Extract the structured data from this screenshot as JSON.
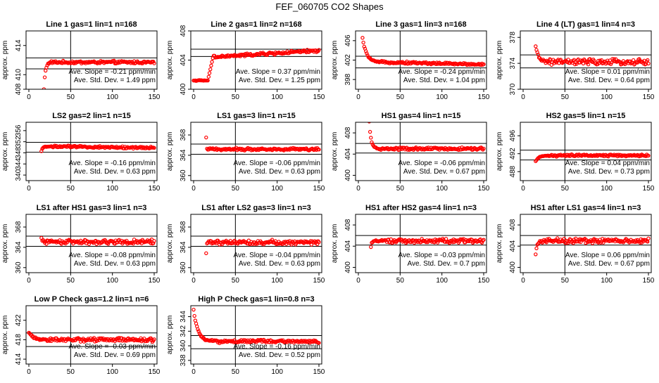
{
  "figure": {
    "title": "FEF_060705  CO2 Shapes"
  },
  "colors": {
    "points": "#ff0000",
    "axes": "#000000",
    "background": "#ffffff"
  },
  "chart_data": [
    {
      "type": "scatter",
      "title": "Line 1 gas=1 lin=1 n=168",
      "ylabel": "approx. ppm",
      "xlim": [
        0,
        150
      ],
      "ylim": [
        408,
        416
      ],
      "xticks": [
        0,
        50,
        100,
        150
      ],
      "yticks": [
        408,
        410,
        414
      ],
      "hlines": [
        410.8,
        412.3
      ],
      "vline": 50,
      "level": 411.7,
      "noise": 0.15,
      "start": {
        "x0": 18,
        "x1": 25,
        "v0": 408,
        "shape": "rise"
      },
      "slope_text": "Ave. Slope = -0.21  ppm/min",
      "std_text": "Ave. Std. Dev. =  1.49  ppm"
    },
    {
      "type": "scatter",
      "title": "Line 2 gas=1 lin=2 n=168",
      "ylabel": "approx. ppm",
      "xlim": [
        0,
        150
      ],
      "ylim": [
        400,
        408
      ],
      "xticks": [
        0,
        50,
        100,
        150
      ],
      "yticks": [
        400,
        404,
        408
      ],
      "hlines": [
        404.5,
        405.5
      ],
      "vline": 50,
      "level": 404.6,
      "noise": 0.15,
      "trend": 0.007,
      "start": {
        "x0": 0,
        "x1": 25,
        "v0": 401.2,
        "shape": "flatrise",
        "xs": 17
      },
      "slope_text": "Ave. Slope =  0.37  ppm/min",
      "std_text": "Ave. Std. Dev. =  1.25  ppm"
    },
    {
      "type": "scatter",
      "title": "Line 3 gas=1 lin=3 n=168",
      "ylabel": "approx. ppm",
      "xlim": [
        0,
        150
      ],
      "ylim": [
        396,
        408
      ],
      "xticks": [
        0,
        50,
        100,
        150
      ],
      "yticks": [
        398,
        402,
        406
      ],
      "hlines": [
        400.4,
        402.8
      ],
      "vline": 50,
      "level": 401.5,
      "noise": 0.18,
      "trend": -0.004,
      "start": {
        "x0": 5,
        "x1": 25,
        "v0": 406.5,
        "shape": "fall"
      },
      "slope_text": "Ave. Slope = -0.24  ppm/min",
      "std_text": "Ave. Std. Dev. =  1.04  ppm"
    },
    {
      "type": "scatter",
      "title": "Line 4 (LT) gas=1 lin=4 n=3",
      "ylabel": "approx. ppm",
      "xlim": [
        0,
        150
      ],
      "ylim": [
        370,
        379
      ],
      "xticks": [
        0,
        50,
        100,
        150
      ],
      "yticks": [
        370,
        374,
        378
      ],
      "hlines": [
        373.3,
        375.3
      ],
      "vline": 50,
      "level": 374.2,
      "noise": 0.35,
      "start": {
        "x0": 15,
        "x1": 30,
        "v0": 376.5,
        "shape": "fall"
      },
      "slope_text": "Ave. Slope =  0.01  ppm/min",
      "std_text": "Ave. Std. Dev. =  0.64  ppm"
    },
    {
      "type": "scatter",
      "title": "LS2 gas=2 lin=1 n=15",
      "ylabel": "approx. ppm",
      "xlim": [
        0,
        150
      ],
      "ylim": [
        338,
        359
      ],
      "xticks": [
        0,
        50,
        100,
        150
      ],
      "yticks": [
        340,
        344,
        348,
        352,
        356
      ],
      "hlines": [
        348.2,
        351.8
      ],
      "vline": 50,
      "level": 350.2,
      "noise": 0.3,
      "trend": -0.004,
      "start": {
        "x0": 15,
        "x1": 20,
        "v0": 348.5,
        "shape": "rise"
      },
      "slope_text": "Ave. Slope = -0.16  ppm/min",
      "std_text": "Ave. Std. Dev. =  0.63  ppm"
    },
    {
      "type": "scatter",
      "title": "LS1 gas=3 lin=1 n=15",
      "ylabel": "approx. ppm",
      "xlim": [
        0,
        150
      ],
      "ylim": [
        359,
        370.5
      ],
      "xticks": [
        0,
        50,
        100,
        150
      ],
      "yticks": [
        360,
        364,
        368
      ],
      "hlines": [
        364.2,
        366.2
      ],
      "vline": 50,
      "level": 365.2,
      "noise": 0.2,
      "start": {
        "x0": 15,
        "x1": 16,
        "v0": 367.5,
        "shape": "spike"
      },
      "slope_text": "Ave. Slope = -0.06  ppm/min",
      "std_text": "Ave. Std. Dev. =  0.63  ppm"
    },
    {
      "type": "scatter",
      "title": "HS1 gas=4 lin=1 n=15",
      "ylabel": "approx. ppm",
      "xlim": [
        0,
        150
      ],
      "ylim": [
        399,
        410
      ],
      "xticks": [
        0,
        50,
        100,
        150
      ],
      "yticks": [
        400,
        404,
        408
      ],
      "hlines": [
        404.2,
        406
      ],
      "vline": 50,
      "level": 405,
      "noise": 0.2,
      "start": {
        "x0": 13,
        "x1": 22,
        "v0": 410,
        "shape": "fall"
      },
      "slope_text": "Ave. Slope = -0.06  ppm/min",
      "std_text": "Ave. Std. Dev. =  0.67  ppm"
    },
    {
      "type": "scatter",
      "title": "HS2 gas=5 lin=1 n=15",
      "ylabel": "approx. ppm",
      "xlim": [
        0,
        150
      ],
      "ylim": [
        486,
        499
      ],
      "xticks": [
        0,
        50,
        100,
        150
      ],
      "yticks": [
        488,
        492,
        496
      ],
      "hlines": [
        490.6,
        492.8
      ],
      "vline": 50,
      "level": 491.6,
      "noise": 0.2,
      "start": {
        "x0": 15,
        "x1": 30,
        "v0": 490.2,
        "shape": "rise"
      },
      "slope_text": "Ave. Slope =  0.04  ppm/min",
      "std_text": "Ave. Std. Dev. =  0.73  ppm"
    },
    {
      "type": "scatter",
      "title": "LS1 after HS1 gas=3 lin=1 n=3",
      "ylabel": "approx. ppm",
      "xlim": [
        0,
        150
      ],
      "ylim": [
        359,
        370.5
      ],
      "xticks": [
        0,
        50,
        100,
        150
      ],
      "yticks": [
        360,
        364,
        368
      ],
      "hlines": [
        364.2,
        366.2
      ],
      "vline": 50,
      "level": 365.1,
      "noise": 0.35,
      "start": {
        "x0": 15,
        "x1": 20,
        "v0": 366,
        "shape": "fall"
      },
      "slope_text": "Ave. Slope = -0.08  ppm/min",
      "std_text": "Ave. Std. Dev. =  0.63  ppm"
    },
    {
      "type": "scatter",
      "title": "LS1 after LS2 gas=3 lin=1 n=3",
      "ylabel": "approx. ppm",
      "xlim": [
        0,
        150
      ],
      "ylim": [
        359,
        370.5
      ],
      "xticks": [
        0,
        50,
        100,
        150
      ],
      "yticks": [
        360,
        364,
        368
      ],
      "hlines": [
        364.2,
        366.2
      ],
      "vline": 50,
      "level": 365,
      "noise": 0.35,
      "start": {
        "x0": 15,
        "x1": 17,
        "v0": 363,
        "shape": "rise"
      },
      "slope_text": "Ave. Slope = -0.04  ppm/min",
      "std_text": "Ave. Std. Dev. =  0.63  ppm"
    },
    {
      "type": "scatter",
      "title": "HS1 after HS2 gas=4 lin=1 n=3",
      "ylabel": "approx. ppm",
      "xlim": [
        0,
        150
      ],
      "ylim": [
        399,
        410
      ],
      "xticks": [
        0,
        50,
        100,
        150
      ],
      "yticks": [
        400,
        404,
        408
      ],
      "hlines": [
        404.2,
        406
      ],
      "vline": 50,
      "level": 405,
      "noise": 0.3,
      "start": {
        "x0": 15,
        "x1": 20,
        "v0": 404,
        "shape": "rise"
      },
      "slope_text": "Ave. Slope = -0.03  ppm/min",
      "std_text": "Ave. Std. Dev. =  0.7  ppm"
    },
    {
      "type": "scatter",
      "title": "HS1 after LS1 gas=4 lin=1 n=3",
      "ylabel": "approx. ppm",
      "xlim": [
        0,
        150
      ],
      "ylim": [
        399,
        410
      ],
      "xticks": [
        0,
        50,
        100,
        150
      ],
      "yticks": [
        400,
        404,
        408
      ],
      "hlines": [
        404.2,
        406
      ],
      "vline": 50,
      "level": 405,
      "noise": 0.35,
      "start": {
        "x0": 15,
        "x1": 22,
        "v0": 402.5,
        "shape": "rise"
      },
      "slope_text": "Ave. Slope =  0.06  ppm/min",
      "std_text": "Ave. Std. Dev. =  0.67  ppm"
    },
    {
      "type": "scatter",
      "title": "Low P Check gas=1.2 lin=1 n=6",
      "ylabel": "approx. ppm",
      "xlim": [
        0,
        150
      ],
      "ylim": [
        413,
        425
      ],
      "xticks": [
        0,
        50,
        100,
        150
      ],
      "yticks": [
        414,
        418,
        422
      ],
      "hlines": [
        416.6,
        419.4
      ],
      "vline": 50,
      "level": 418,
      "noise": 0.3,
      "start": {
        "x0": 0,
        "x1": 20,
        "v0": 419.5,
        "shape": "fall"
      },
      "slope_text": "Ave. Slope = -0.03  ppm/min",
      "std_text": "Ave. Std. Dev. =  0.69  ppm"
    },
    {
      "type": "scatter",
      "title": "High P Check gas=1 lin=0.8 n=3",
      "ylabel": "approx. ppm",
      "xlim": [
        0,
        150
      ],
      "ylim": [
        337.5,
        345.5
      ],
      "xticks": [
        0,
        50,
        100,
        150
      ],
      "yticks": [
        338,
        340,
        342,
        344
      ],
      "hlines": [
        339.6,
        341.4
      ],
      "vline": 50,
      "level": 340.6,
      "noise": 0.18,
      "start": {
        "x0": 0,
        "x1": 20,
        "v0": 345,
        "shape": "fall"
      },
      "slope_text": "Ave. Slope = -0.16  ppm/min",
      "std_text": "Ave. Std. Dev. =  0.52  ppm"
    }
  ]
}
